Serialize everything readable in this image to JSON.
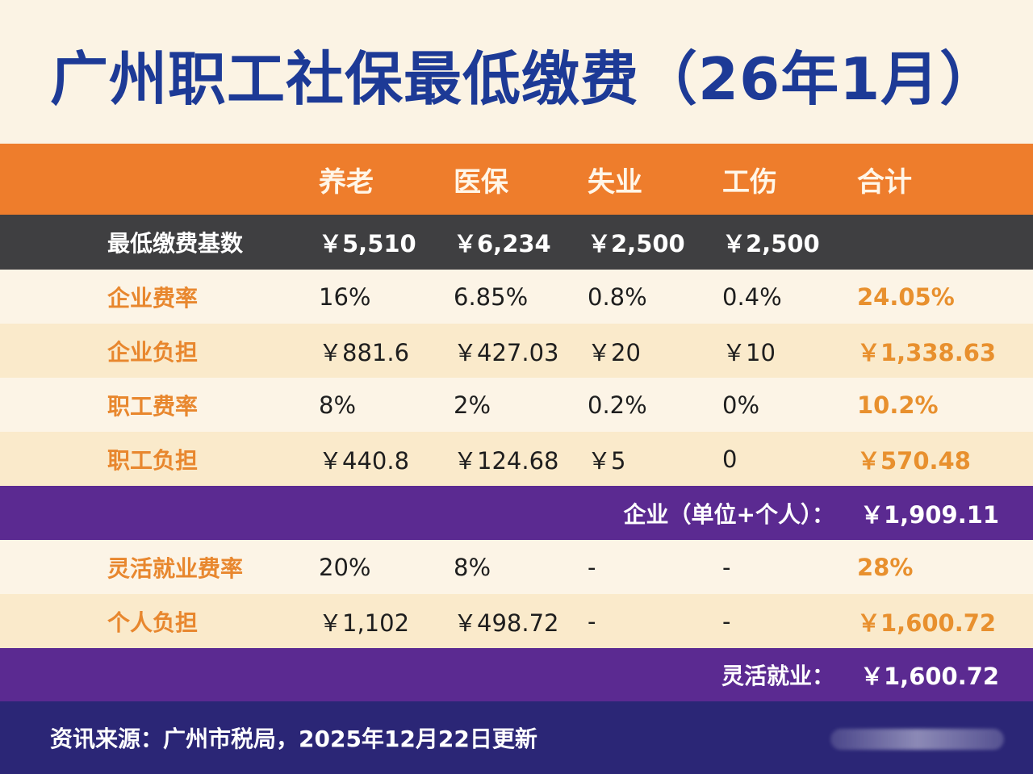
{
  "title": "广州职工社保最低缴费（26年1月）",
  "header": {
    "col0": "",
    "cols": [
      "养老",
      "医保",
      "失业",
      "工伤",
      "合计"
    ]
  },
  "base": {
    "label": "最低缴费基数",
    "values": [
      "￥5,510",
      "￥6,234",
      "￥2,500",
      "￥2,500",
      ""
    ]
  },
  "rows": [
    {
      "label": "企业费率",
      "values": [
        "16%",
        "6.85%",
        "0.8%",
        "0.4%",
        "24.05%"
      ]
    },
    {
      "label": "企业负担",
      "values": [
        "￥881.6",
        "￥427.03",
        "￥20",
        "￥10",
        "￥1,338.63"
      ]
    },
    {
      "label": "职工费率",
      "values": [
        "8%",
        "2%",
        "0.2%",
        "0%",
        "10.2%"
      ]
    },
    {
      "label": "职工负担",
      "values": [
        "￥440.8",
        "￥124.68",
        "￥5",
        "0",
        "￥570.48"
      ]
    }
  ],
  "total_enterprise": {
    "label": "企业（单位+个人）：",
    "value": "￥1,909.11"
  },
  "flex_rows": [
    {
      "label": "灵活就业费率",
      "values": [
        "20%",
        "8%",
        "-",
        "-",
        "28%"
      ]
    },
    {
      "label": "个人负担",
      "values": [
        "￥1,102",
        "￥498.72",
        "-",
        "-",
        "￥1,600.72"
      ]
    }
  ],
  "total_flex": {
    "label": "灵活就业：",
    "value": "￥1,600.72"
  },
  "footer": {
    "source": "资讯来源：广州市税局，2025年12月22日更新"
  }
}
